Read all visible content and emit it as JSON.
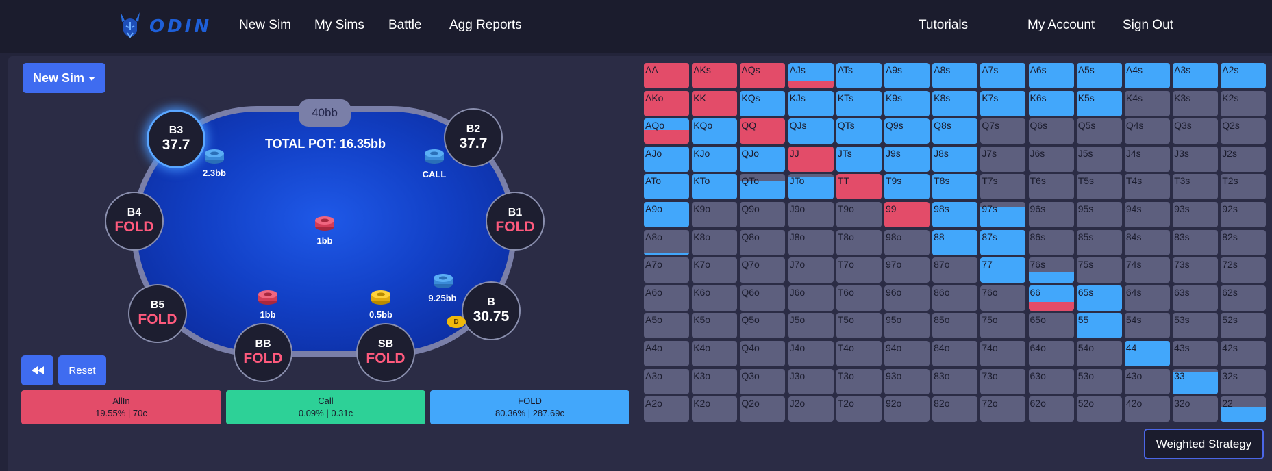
{
  "nav": {
    "logo_text": "ODIN",
    "links": [
      "New Sim",
      "My Sims",
      "Battle",
      "Agg Reports"
    ],
    "right_links": [
      "Tutorials",
      "My Account",
      "Sign Out"
    ]
  },
  "controls": {
    "new_sim_label": "New Sim",
    "reset_label": "Reset",
    "weighted_label": "Weighted Strategy"
  },
  "table": {
    "pot_badge": "40bb",
    "total_pot": "TOTAL POT: 16.35bb",
    "dealer_label": "D",
    "seats": [
      {
        "name": "B3",
        "value": "37.7"
      },
      {
        "name": "B2",
        "value": "37.7"
      },
      {
        "name": "B4",
        "value": "FOLD"
      },
      {
        "name": "B1",
        "value": "FOLD"
      },
      {
        "name": "B5",
        "value": "FOLD"
      },
      {
        "name": "B",
        "value": "30.75"
      },
      {
        "name": "BB",
        "value": "FOLD"
      },
      {
        "name": "SB",
        "value": "FOLD"
      }
    ],
    "chips": [
      "2.3bb",
      "CALL",
      "1bb",
      "9.25bb",
      "1bb",
      "0.5bb"
    ]
  },
  "actions": [
    {
      "name": "AllIn",
      "stats": "19.55% | 70c"
    },
    {
      "name": "Call",
      "stats": "0.09% | 0.31c"
    },
    {
      "name": "FOLD",
      "stats": "80.36% | 287.69c"
    }
  ],
  "colors": {
    "allin": "#e34c69",
    "call": "#2dd197",
    "fold": "#42a7fb",
    "empty": "#5d5f7e",
    "accent": "#3f6cf0"
  },
  "grid": {
    "rows": [
      [
        "AA",
        "AKs",
        "AQs",
        "AJs",
        "ATs",
        "A9s",
        "A8s",
        "A7s",
        "A6s",
        "A5s",
        "A4s",
        "A3s",
        "A2s"
      ],
      [
        "AKo",
        "KK",
        "KQs",
        "KJs",
        "KTs",
        "K9s",
        "K8s",
        "K7s",
        "K6s",
        "K5s",
        "K4s",
        "K3s",
        "K2s"
      ],
      [
        "AQo",
        "KQo",
        "QQ",
        "QJs",
        "QTs",
        "Q9s",
        "Q8s",
        "Q7s",
        "Q6s",
        "Q5s",
        "Q4s",
        "Q3s",
        "Q2s"
      ],
      [
        "AJo",
        "KJo",
        "QJo",
        "JJ",
        "JTs",
        "J9s",
        "J8s",
        "J7s",
        "J6s",
        "J5s",
        "J4s",
        "J3s",
        "J2s"
      ],
      [
        "ATo",
        "KTo",
        "QTo",
        "JTo",
        "TT",
        "T9s",
        "T8s",
        "T7s",
        "T6s",
        "T5s",
        "T4s",
        "T3s",
        "T2s"
      ],
      [
        "A9o",
        "K9o",
        "Q9o",
        "J9o",
        "T9o",
        "99",
        "98s",
        "97s",
        "96s",
        "95s",
        "94s",
        "93s",
        "92s"
      ],
      [
        "A8o",
        "K8o",
        "Q8o",
        "J8o",
        "T8o",
        "98o",
        "88",
        "87s",
        "86s",
        "85s",
        "84s",
        "83s",
        "82s"
      ],
      [
        "A7o",
        "K7o",
        "Q7o",
        "J7o",
        "T7o",
        "97o",
        "87o",
        "77",
        "76s",
        "75s",
        "74s",
        "73s",
        "72s"
      ],
      [
        "A6o",
        "K6o",
        "Q6o",
        "J6o",
        "T6o",
        "96o",
        "86o",
        "76o",
        "66",
        "65s",
        "64s",
        "63s",
        "62s"
      ],
      [
        "A5o",
        "K5o",
        "Q5o",
        "J5o",
        "T5o",
        "95o",
        "85o",
        "75o",
        "65o",
        "55",
        "54s",
        "53s",
        "52s"
      ],
      [
        "A4o",
        "K4o",
        "Q4o",
        "J4o",
        "T4o",
        "94o",
        "84o",
        "74o",
        "64o",
        "54o",
        "44",
        "43s",
        "42s"
      ],
      [
        "A3o",
        "K3o",
        "Q3o",
        "J3o",
        "T3o",
        "93o",
        "83o",
        "73o",
        "63o",
        "53o",
        "43o",
        "33",
        "32s"
      ],
      [
        "A2o",
        "K2o",
        "Q2o",
        "J2o",
        "T2o",
        "92o",
        "82o",
        "72o",
        "62o",
        "52o",
        "42o",
        "32o",
        "22"
      ]
    ],
    "strategy": [
      [
        [
          1,
          0
        ],
        [
          1,
          0
        ],
        [
          1,
          0
        ],
        [
          0.3,
          0.7
        ],
        [
          0,
          1
        ],
        [
          0,
          1
        ],
        [
          0,
          1
        ],
        [
          0,
          1
        ],
        [
          0,
          1
        ],
        [
          0,
          1
        ],
        [
          0,
          1
        ],
        [
          0,
          1
        ],
        [
          0,
          1
        ]
      ],
      [
        [
          1,
          0
        ],
        [
          1,
          0
        ],
        [
          0,
          1
        ],
        [
          0,
          1
        ],
        [
          0,
          1
        ],
        [
          0,
          1
        ],
        [
          0,
          1
        ],
        [
          0,
          1
        ],
        [
          0,
          1
        ],
        [
          0,
          1
        ],
        [
          0,
          0
        ],
        [
          0,
          0
        ],
        [
          0,
          0
        ]
      ],
      [
        [
          0.55,
          0.45
        ],
        [
          0,
          1
        ],
        [
          1,
          0
        ],
        [
          0,
          1
        ],
        [
          0,
          1
        ],
        [
          0,
          1
        ],
        [
          0,
          1
        ],
        [
          0,
          0
        ],
        [
          0,
          0
        ],
        [
          0,
          0
        ],
        [
          0,
          0
        ],
        [
          0,
          0
        ],
        [
          0,
          0
        ]
      ],
      [
        [
          0,
          1
        ],
        [
          0,
          1
        ],
        [
          0,
          1
        ],
        [
          1,
          0
        ],
        [
          0,
          1
        ],
        [
          0,
          1
        ],
        [
          0,
          1
        ],
        [
          0,
          0
        ],
        [
          0,
          0
        ],
        [
          0,
          0
        ],
        [
          0,
          0
        ],
        [
          0,
          0
        ],
        [
          0,
          0
        ]
      ],
      [
        [
          0,
          1
        ],
        [
          0,
          1
        ],
        [
          0,
          0.75
        ],
        [
          0,
          0.9
        ],
        [
          1,
          0
        ],
        [
          0,
          1
        ],
        [
          0,
          1
        ],
        [
          0,
          0
        ],
        [
          0,
          0
        ],
        [
          0,
          0
        ],
        [
          0,
          0
        ],
        [
          0,
          0
        ],
        [
          0,
          0
        ]
      ],
      [
        [
          0,
          1
        ],
        [
          0,
          0
        ],
        [
          0,
          0
        ],
        [
          0,
          0
        ],
        [
          0,
          0
        ],
        [
          1,
          0
        ],
        [
          0,
          1
        ],
        [
          0,
          0.8
        ],
        [
          0,
          0
        ],
        [
          0,
          0
        ],
        [
          0,
          0
        ],
        [
          0,
          0
        ],
        [
          0,
          0
        ]
      ],
      [
        [
          0,
          0.08
        ],
        [
          0,
          0
        ],
        [
          0,
          0
        ],
        [
          0,
          0
        ],
        [
          0,
          0
        ],
        [
          0,
          0
        ],
        [
          0,
          1
        ],
        [
          0,
          1
        ],
        [
          0,
          0
        ],
        [
          0,
          0
        ],
        [
          0,
          0
        ],
        [
          0,
          0
        ],
        [
          0,
          0
        ]
      ],
      [
        [
          0,
          0
        ],
        [
          0,
          0
        ],
        [
          0,
          0
        ],
        [
          0,
          0
        ],
        [
          0,
          0
        ],
        [
          0,
          0
        ],
        [
          0,
          0
        ],
        [
          0,
          1
        ],
        [
          0,
          0.45
        ],
        [
          0,
          0
        ],
        [
          0,
          0
        ],
        [
          0,
          0
        ],
        [
          0,
          0
        ]
      ],
      [
        [
          0,
          0
        ],
        [
          0,
          0
        ],
        [
          0,
          0
        ],
        [
          0,
          0
        ],
        [
          0,
          0
        ],
        [
          0,
          0
        ],
        [
          0,
          0
        ],
        [
          0,
          0
        ],
        [
          0.35,
          0.65
        ],
        [
          0,
          1
        ],
        [
          0,
          0
        ],
        [
          0,
          0
        ],
        [
          0,
          0
        ]
      ],
      [
        [
          0,
          0
        ],
        [
          0,
          0
        ],
        [
          0,
          0
        ],
        [
          0,
          0
        ],
        [
          0,
          0
        ],
        [
          0,
          0
        ],
        [
          0,
          0
        ],
        [
          0,
          0
        ],
        [
          0,
          0
        ],
        [
          0,
          1
        ],
        [
          0,
          0
        ],
        [
          0,
          0
        ],
        [
          0,
          0
        ]
      ],
      [
        [
          0,
          0
        ],
        [
          0,
          0
        ],
        [
          0,
          0
        ],
        [
          0,
          0
        ],
        [
          0,
          0
        ],
        [
          0,
          0
        ],
        [
          0,
          0
        ],
        [
          0,
          0
        ],
        [
          0,
          0
        ],
        [
          0,
          0
        ],
        [
          0,
          1
        ],
        [
          0,
          0
        ],
        [
          0,
          0
        ]
      ],
      [
        [
          0,
          0
        ],
        [
          0,
          0
        ],
        [
          0,
          0
        ],
        [
          0,
          0
        ],
        [
          0,
          0
        ],
        [
          0,
          0
        ],
        [
          0,
          0
        ],
        [
          0,
          0
        ],
        [
          0,
          0
        ],
        [
          0,
          0
        ],
        [
          0,
          0
        ],
        [
          0,
          0.85
        ],
        [
          0,
          0
        ]
      ],
      [
        [
          0,
          0
        ],
        [
          0,
          0
        ],
        [
          0,
          0
        ],
        [
          0,
          0
        ],
        [
          0,
          0
        ],
        [
          0,
          0
        ],
        [
          0,
          0
        ],
        [
          0,
          0
        ],
        [
          0,
          0
        ],
        [
          0,
          0
        ],
        [
          0,
          0
        ],
        [
          0,
          0
        ],
        [
          0,
          0.6
        ]
      ]
    ]
  }
}
